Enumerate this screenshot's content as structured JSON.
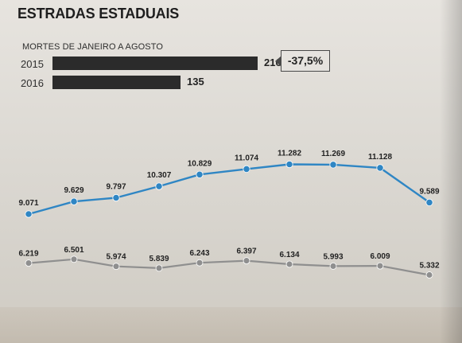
{
  "chart_data": [
    {
      "type": "bar",
      "title": "ESTRADAS ESTADUAIS",
      "subtitle": "MORTES DE JANEIRO A AGOSTO",
      "categories": [
        "2015",
        "2016"
      ],
      "values": [
        216,
        135
      ],
      "value_labels": [
        "216",
        "135"
      ],
      "annotation": "-37,5%",
      "colors": {
        "bar": "#2b2b2b"
      }
    },
    {
      "type": "line",
      "series": [
        {
          "values": [
            9071,
            9629,
            9797,
            10307,
            10829,
            11074,
            11282,
            11269,
            11128,
            9589
          ],
          "labels": [
            "9.071",
            "9.629",
            "9.797",
            "10.307",
            "10.829",
            "11.074",
            "11.282",
            "11.269",
            "11.128",
            "9.589"
          ],
          "color": "#2f86c4"
        },
        {
          "values": [
            6219,
            6501,
            5974,
            5839,
            6243,
            6397,
            6134,
            5993,
            6009,
            5332
          ],
          "labels": [
            "6.219",
            "6.501",
            "5.974",
            "5.839",
            "6.243",
            "6.397",
            "6.134",
            "5.993",
            "6.009",
            "5.332"
          ],
          "color": "#8f8f8f"
        }
      ]
    }
  ]
}
